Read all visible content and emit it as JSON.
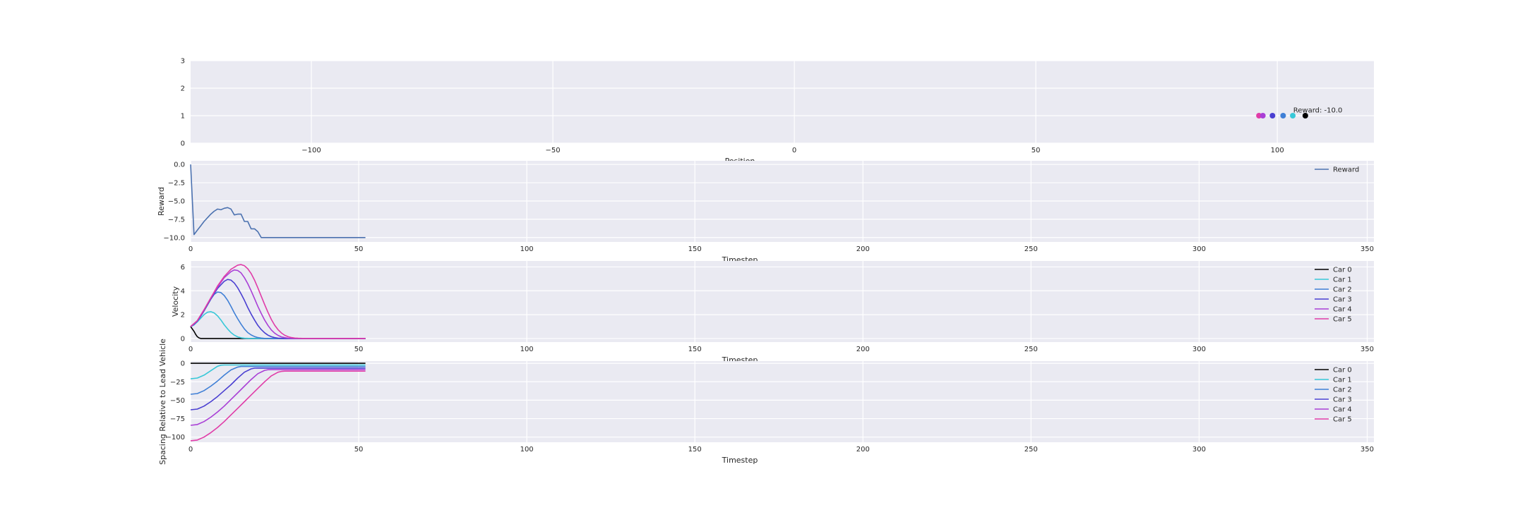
{
  "colors": {
    "background": "#eaeaf2",
    "grid": "#ffffff",
    "car0": "#000000",
    "car1": "#38c8d8",
    "car2": "#3f7fd6",
    "car3": "#4a3fd1",
    "car4": "#a93fd6",
    "car5": "#e03ca8",
    "reward": "#4c72b0"
  },
  "chart_data": [
    {
      "type": "scatter",
      "xlabel": "Position",
      "ylabel": "",
      "xlim": [
        -125,
        120
      ],
      "ylim": [
        0,
        3
      ],
      "xticks": [
        -100,
        -50,
        0,
        50,
        100
      ],
      "xtick_labels": [
        "−100",
        "−50",
        "0",
        "50",
        "100"
      ],
      "yticks": [
        0,
        1,
        2,
        3
      ],
      "ytick_labels": [
        "0",
        "1",
        "2",
        "3"
      ],
      "grid": true,
      "points": [
        {
          "name": "Car 5",
          "x": 96.2,
          "y": 1,
          "color": "#e03ca8"
        },
        {
          "name": "Car 4",
          "x": 97.0,
          "y": 1,
          "color": "#a93fd6"
        },
        {
          "name": "Car 3",
          "x": 99.0,
          "y": 1,
          "color": "#4a3fd1"
        },
        {
          "name": "Car 2",
          "x": 101.2,
          "y": 1,
          "color": "#3f7fd6"
        },
        {
          "name": "Car 1",
          "x": 103.2,
          "y": 1,
          "color": "#38c8d8"
        },
        {
          "name": "Car 0",
          "x": 105.8,
          "y": 1,
          "color": "#000000"
        }
      ],
      "annotation": {
        "text": "Reward: -10.0",
        "x": 103.3,
        "y": 1.12
      }
    },
    {
      "type": "line",
      "xlabel": "Timestep",
      "ylabel": "Reward",
      "xlim": [
        0,
        352
      ],
      "ylim": [
        -10.6,
        0.5
      ],
      "xticks": [
        0,
        50,
        100,
        150,
        200,
        250,
        300,
        350
      ],
      "xtick_labels": [
        "0",
        "50",
        "100",
        "150",
        "200",
        "250",
        "300",
        "350"
      ],
      "yticks": [
        0,
        -2.5,
        -5,
        -7.5,
        -10
      ],
      "ytick_labels": [
        "0.0",
        "−2.5",
        "−5.0",
        "−7.5",
        "−10.0"
      ],
      "grid": true,
      "legend": "top-right",
      "series": [
        {
          "name": "Reward",
          "color": "#4c72b0",
          "x": [
            0,
            1,
            2,
            3,
            4,
            5,
            6,
            7,
            8,
            9,
            10,
            11,
            12,
            13,
            14,
            15,
            16,
            17,
            18,
            19,
            20,
            21,
            22,
            23,
            24,
            25,
            26,
            27,
            28,
            29,
            30,
            31,
            32,
            33,
            34,
            35,
            36,
            37,
            38,
            39,
            40,
            41,
            42,
            43,
            44,
            45,
            46,
            47,
            48,
            49,
            50,
            51,
            52
          ],
          "values": [
            0,
            -9.6,
            -9.0,
            -8.4,
            -7.8,
            -7.3,
            -6.8,
            -6.4,
            -6.1,
            -6.2,
            -6.0,
            -5.9,
            -6.1,
            -6.9,
            -6.8,
            -6.8,
            -7.8,
            -7.8,
            -8.8,
            -8.8,
            -9.2,
            -10,
            -10,
            -10,
            -10,
            -10,
            -10,
            -10,
            -10,
            -10,
            -10,
            -10,
            -10,
            -10,
            -10,
            -10,
            -10,
            -10,
            -10,
            -10,
            -10,
            -10,
            -10,
            -10,
            -10,
            -10,
            -10,
            -10,
            -10,
            -10,
            -10,
            -10,
            -10
          ]
        }
      ]
    },
    {
      "type": "line",
      "xlabel": "Timestep",
      "ylabel": "Velocity",
      "xlim": [
        0,
        352
      ],
      "ylim": [
        -0.3,
        6.5
      ],
      "xticks": [
        0,
        50,
        100,
        150,
        200,
        250,
        300,
        350
      ],
      "xtick_labels": [
        "0",
        "50",
        "100",
        "150",
        "200",
        "250",
        "300",
        "350"
      ],
      "yticks": [
        0,
        2,
        4,
        6
      ],
      "ytick_labels": [
        "0",
        "2",
        "4",
        "6"
      ],
      "grid": true,
      "legend": "top-right",
      "series": [
        {
          "name": "Car 0",
          "color": "#000000",
          "x": [
            0,
            1,
            1.5,
            2,
            2.5,
            3,
            52
          ],
          "values": [
            1,
            0.6,
            0.35,
            0.15,
            0.05,
            0,
            0
          ]
        },
        {
          "name": "Car 1",
          "color": "#38c8d8",
          "x": [
            0,
            1,
            2,
            3,
            4,
            5,
            6,
            7,
            8,
            9,
            10,
            11,
            12,
            13,
            14,
            15,
            16,
            18,
            20,
            52
          ],
          "values": [
            1,
            1.15,
            1.4,
            1.7,
            2.0,
            2.2,
            2.25,
            2.15,
            1.9,
            1.55,
            1.15,
            0.8,
            0.5,
            0.28,
            0.14,
            0.06,
            0.02,
            0,
            0,
            0
          ]
        },
        {
          "name": "Car 2",
          "color": "#3f7fd6",
          "x": [
            0,
            1,
            2,
            3,
            4,
            5,
            6,
            7,
            8,
            9,
            10,
            11,
            12,
            13,
            14,
            15,
            16,
            17,
            18,
            19,
            20,
            21,
            22,
            24,
            26,
            52
          ],
          "values": [
            1,
            1.15,
            1.45,
            1.85,
            2.3,
            2.8,
            3.3,
            3.7,
            3.9,
            3.85,
            3.6,
            3.2,
            2.7,
            2.15,
            1.65,
            1.2,
            0.8,
            0.5,
            0.3,
            0.16,
            0.08,
            0.04,
            0.01,
            0,
            0,
            0
          ]
        },
        {
          "name": "Car 3",
          "color": "#4a3fd1",
          "x": [
            0,
            2,
            4,
            6,
            8,
            10,
            11,
            12,
            13,
            14,
            15,
            16,
            17,
            18,
            19,
            20,
            21,
            22,
            23,
            24,
            25,
            26,
            28,
            30,
            52
          ],
          "values": [
            1,
            1.45,
            2.35,
            3.3,
            4.2,
            4.8,
            4.95,
            4.9,
            4.65,
            4.25,
            3.75,
            3.2,
            2.6,
            2.05,
            1.55,
            1.1,
            0.75,
            0.48,
            0.28,
            0.15,
            0.07,
            0.03,
            0,
            0,
            0
          ]
        },
        {
          "name": "Car 4",
          "color": "#a93fd6",
          "x": [
            0,
            2,
            4,
            6,
            8,
            10,
            12,
            13,
            14,
            15,
            16,
            17,
            18,
            19,
            20,
            21,
            22,
            23,
            24,
            25,
            26,
            27,
            28,
            29,
            30,
            32,
            34,
            52
          ],
          "values": [
            1,
            1.5,
            2.4,
            3.4,
            4.3,
            5.1,
            5.6,
            5.75,
            5.7,
            5.5,
            5.1,
            4.6,
            4.0,
            3.35,
            2.7,
            2.1,
            1.55,
            1.1,
            0.72,
            0.45,
            0.26,
            0.14,
            0.07,
            0.03,
            0.01,
            0,
            0,
            0
          ]
        },
        {
          "name": "Car 5",
          "color": "#e03ca8",
          "x": [
            0,
            2,
            4,
            6,
            8,
            10,
            12,
            14,
            15,
            16,
            17,
            18,
            19,
            20,
            21,
            22,
            23,
            24,
            25,
            26,
            27,
            28,
            29,
            30,
            31,
            32,
            34,
            36,
            52
          ],
          "values": [
            1,
            1.5,
            2.4,
            3.4,
            4.4,
            5.2,
            5.8,
            6.15,
            6.2,
            6.1,
            5.85,
            5.45,
            4.9,
            4.25,
            3.55,
            2.85,
            2.2,
            1.6,
            1.12,
            0.74,
            0.46,
            0.27,
            0.15,
            0.08,
            0.04,
            0.02,
            0,
            0,
            0
          ]
        }
      ]
    },
    {
      "type": "line",
      "xlabel": "Timestep",
      "ylabel": "Spacing Relative to Lead Vehicle",
      "xlim": [
        0,
        352
      ],
      "ylim": [
        -107,
        3
      ],
      "xticks": [
        0,
        50,
        100,
        150,
        200,
        250,
        300,
        350
      ],
      "xtick_labels": [
        "0",
        "50",
        "100",
        "150",
        "200",
        "250",
        "300",
        "350"
      ],
      "yticks": [
        0,
        -25,
        -50,
        -75,
        -100
      ],
      "ytick_labels": [
        "0",
        "−25",
        "−50",
        "−75",
        "−100"
      ],
      "grid": true,
      "legend": "top-right",
      "series": [
        {
          "name": "Car 0",
          "color": "#000000",
          "x": [
            0,
            52
          ],
          "values": [
            0,
            0
          ]
        },
        {
          "name": "Car 1",
          "color": "#38c8d8",
          "x": [
            0,
            2,
            4,
            6,
            8,
            9,
            10,
            52
          ],
          "values": [
            -21,
            -20,
            -16,
            -10,
            -4,
            -2.5,
            -2.3,
            -2.3
          ]
        },
        {
          "name": "Car 2",
          "color": "#3f7fd6",
          "x": [
            0,
            2,
            4,
            6,
            8,
            10,
            12,
            14,
            15,
            16,
            52
          ],
          "values": [
            -42,
            -41,
            -37,
            -31,
            -24,
            -16,
            -9,
            -5,
            -4.3,
            -4.3,
            -4.3
          ]
        },
        {
          "name": "Car 3",
          "color": "#4a3fd1",
          "x": [
            0,
            2,
            4,
            6,
            8,
            10,
            12,
            14,
            16,
            18,
            19,
            20,
            52
          ],
          "values": [
            -63,
            -62,
            -58,
            -52,
            -45,
            -37,
            -29,
            -20,
            -12,
            -7.5,
            -6.6,
            -6.5,
            -6.5
          ]
        },
        {
          "name": "Car 4",
          "color": "#a93fd6",
          "x": [
            0,
            2,
            4,
            6,
            8,
            10,
            12,
            14,
            16,
            18,
            20,
            22,
            23,
            24,
            52
          ],
          "values": [
            -84,
            -83,
            -79,
            -73,
            -66,
            -58,
            -49,
            -40,
            -31,
            -22,
            -14,
            -9.5,
            -8.7,
            -8.6,
            -8.6
          ]
        },
        {
          "name": "Car 5",
          "color": "#e03ca8",
          "x": [
            0,
            2,
            4,
            6,
            8,
            10,
            12,
            14,
            16,
            18,
            20,
            22,
            24,
            26,
            27,
            28,
            52
          ],
          "values": [
            -105,
            -104,
            -100,
            -94,
            -87,
            -79,
            -70,
            -61,
            -52,
            -43,
            -34,
            -25,
            -17,
            -12,
            -11,
            -10.6,
            -10.6
          ]
        }
      ]
    }
  ]
}
